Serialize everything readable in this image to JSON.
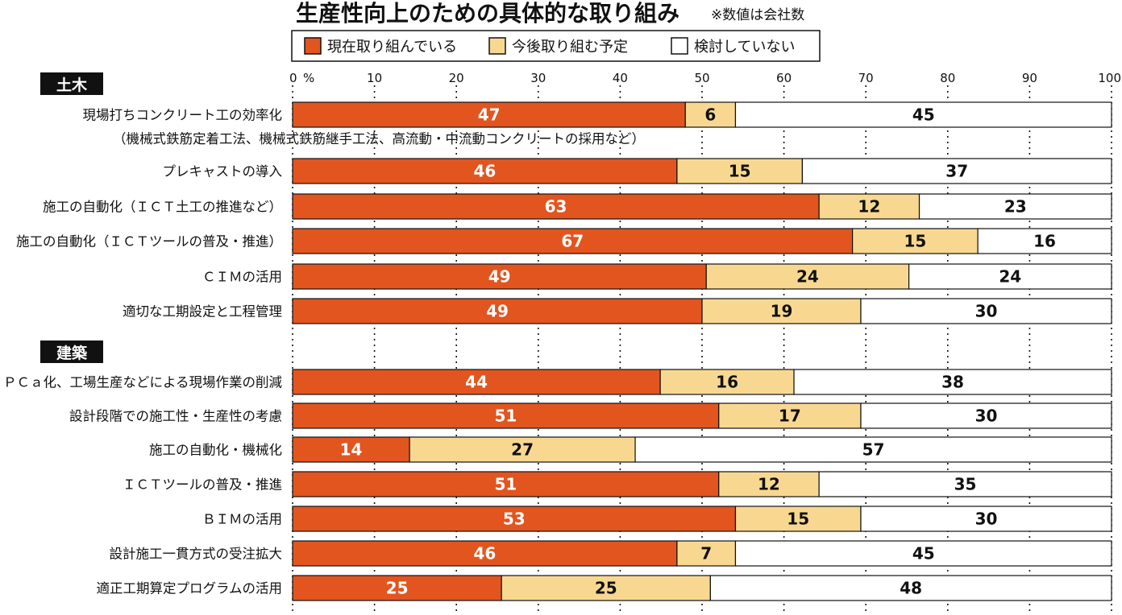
{
  "header": {
    "title": "生産性向上のための具体的な取り組み",
    "note": "※数値は会社数"
  },
  "chart_data": {
    "type": "bar",
    "orientation": "horizontal",
    "stacked": true,
    "xlim": [
      0,
      100
    ],
    "x_ticks": [
      "0",
      "10",
      "20",
      "30",
      "40",
      "50",
      "60",
      "70",
      "80",
      "90",
      "100"
    ],
    "x_unit_label": "%",
    "grid": true,
    "legend_position": "top",
    "series": [
      {
        "name": "現在取り組んでいる",
        "color": "#e2551f",
        "label_color": "#ffffff"
      },
      {
        "name": "今後取り組む予定",
        "color": "#f8d891",
        "label_color": "#111111"
      },
      {
        "name": "検討していない",
        "color": "#ffffff",
        "label_color": "#111111"
      }
    ],
    "groups": [
      {
        "name": "土木",
        "rows": [
          {
            "label": "現場打ちコンクリート工の効率化",
            "sublabel": "（機械式鉄筋定着工法、機械式鉄筋継手工法、高流動・中流動コンクリートの採用など）",
            "values": [
              47,
              6,
              45
            ]
          },
          {
            "label": "プレキャストの導入",
            "values": [
              46,
              15,
              37
            ]
          },
          {
            "label": "施工の自動化（ＩＣＴ土工の推進など）",
            "values": [
              63,
              12,
              23
            ]
          },
          {
            "label": "施工の自動化（ＩＣＴツールの普及・推進）",
            "values": [
              67,
              15,
              16
            ]
          },
          {
            "label": "ＣＩＭの活用",
            "values": [
              49,
              24,
              24
            ]
          },
          {
            "label": "適切な工期設定と工程管理",
            "values": [
              49,
              19,
              30
            ]
          }
        ]
      },
      {
        "name": "建築",
        "rows": [
          {
            "label": "ＰＣａ化、工場生産などによる現場作業の削減",
            "values": [
              44,
              16,
              38
            ]
          },
          {
            "label": "設計段階での施工性・生産性の考慮",
            "values": [
              51,
              17,
              30
            ]
          },
          {
            "label": "施工の自動化・機械化",
            "values": [
              14,
              27,
              57
            ]
          },
          {
            "label": "ＩＣＴツールの普及・推進",
            "values": [
              51,
              12,
              35
            ]
          },
          {
            "label": "ＢＩＭの活用",
            "values": [
              53,
              15,
              30
            ]
          },
          {
            "label": "設計施工一貫方式の受注拡大",
            "values": [
              46,
              7,
              45
            ]
          },
          {
            "label": "適正工期算定プログラムの活用",
            "values": [
              25,
              25,
              48
            ]
          }
        ]
      }
    ]
  }
}
